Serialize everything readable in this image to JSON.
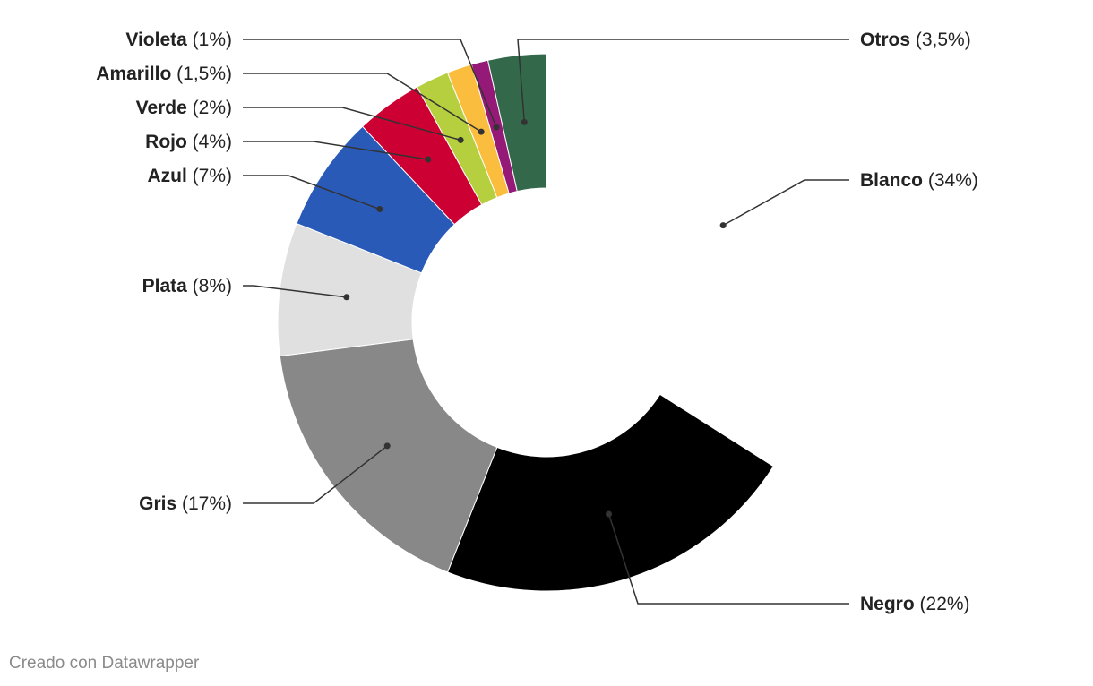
{
  "chart_data": {
    "type": "pie",
    "style": "donut",
    "title": "",
    "slices": [
      {
        "name": "Blanco",
        "value": 34,
        "label": "(34%)",
        "color": "#ffffff"
      },
      {
        "name": "Negro",
        "value": 22,
        "label": "(22%)",
        "color": "#000000"
      },
      {
        "name": "Gris",
        "value": 17,
        "label": "(17%)",
        "color": "#888888"
      },
      {
        "name": "Plata",
        "value": 8,
        "label": "(8%)",
        "color": "#e0e0e0"
      },
      {
        "name": "Azul",
        "value": 7,
        "label": "(7%)",
        "color": "#2a5ab8"
      },
      {
        "name": "Rojo",
        "value": 4,
        "label": "(4%)",
        "color": "#cc0033"
      },
      {
        "name": "Verde",
        "value": 2,
        "label": "(2%)",
        "color": "#b5cf3f"
      },
      {
        "name": "Amarillo",
        "value": 1.5,
        "label": "(1,5%)",
        "color": "#fbbd3e"
      },
      {
        "name": "Violeta",
        "value": 1,
        "label": "(1%)",
        "color": "#951a78"
      },
      {
        "name": "Otros",
        "value": 3.5,
        "label": "(3,5%)",
        "color": "#33694a"
      }
    ]
  },
  "footer": "Creado con Datawrapper"
}
